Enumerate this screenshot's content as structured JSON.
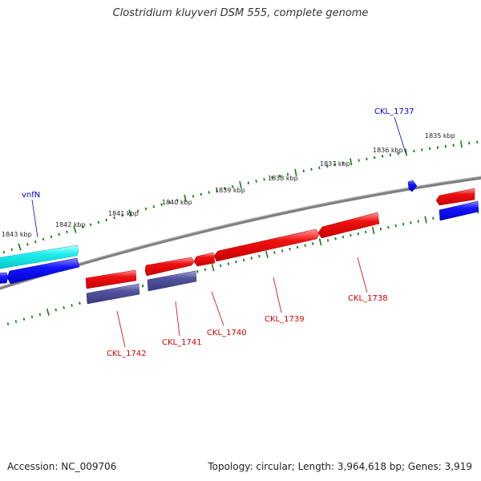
{
  "title": "Clostridium kluyveri DSM 555, complete genome",
  "footer": {
    "accession": "Accession: NC_009706",
    "summary": "Topology: circular; Length: 3,964,618 bp; Genes: 3,919"
  },
  "colors": {
    "forward_cds": "#e60000",
    "forward_rna_like": "#00e5e5",
    "reverse_blue": "#0a0aff",
    "reverse_slate": "#4c4c99",
    "backbone": "#7f7f7f",
    "ticks": "#1a7a1a",
    "label_red": "#cc0000",
    "label_blue": "#0000cc"
  },
  "ticks": [
    {
      "label": "1843 kbp",
      "kbp": 1843
    },
    {
      "label": "1842 kbp",
      "kbp": 1842
    },
    {
      "label": "1841 kbp",
      "kbp": 1841
    },
    {
      "label": "1840 kbp",
      "kbp": 1840
    },
    {
      "label": "1839 kbp",
      "kbp": 1839
    },
    {
      "label": "1838 kbp",
      "kbp": 1838
    },
    {
      "label": "1837 kbp",
      "kbp": 1837
    },
    {
      "label": "1836 kbp",
      "kbp": 1836
    },
    {
      "label": "1835 kbp",
      "kbp": 1835
    }
  ],
  "genes": [
    {
      "label": "vnfN"
    },
    {
      "label": "CKL_1737"
    },
    {
      "label": "CKL_1738"
    },
    {
      "label": "CKL_1739"
    },
    {
      "label": "CKL_1740"
    },
    {
      "label": "CKL_1741"
    },
    {
      "label": "CKL_1742"
    }
  ]
}
